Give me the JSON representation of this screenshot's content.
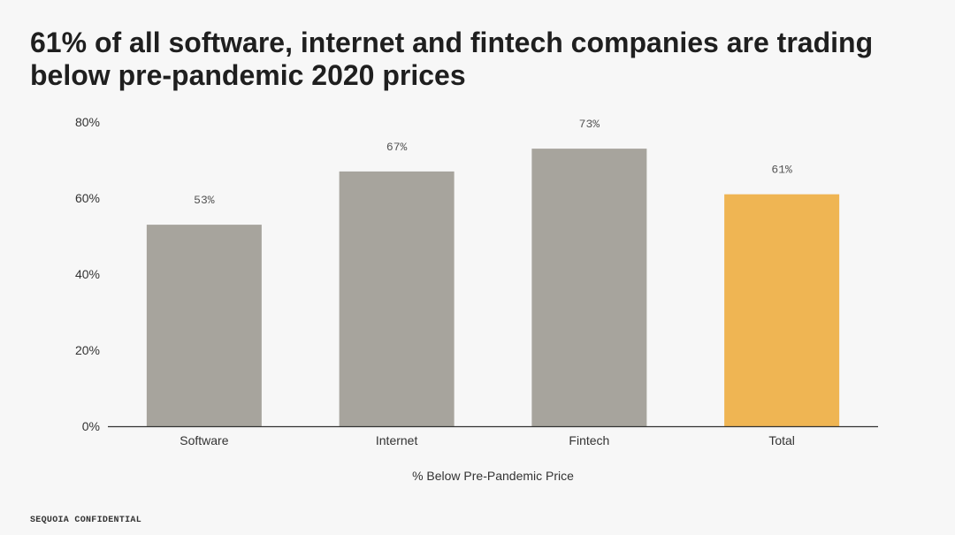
{
  "title_lines": [
    "61% of all software, internet and fintech companies are trading",
    "below pre-pandemic 2020 prices"
  ],
  "footer": "SEQUOIA CONFIDENTIAL",
  "colors": {
    "default_bar": "#a7a49d",
    "highlight_bar": "#efb553",
    "axis_line": "#333333"
  },
  "chart_data": {
    "type": "bar",
    "title": "61% of all software, internet and fintech companies are trading below pre-pandemic 2020 prices",
    "categories": [
      "Software",
      "Internet",
      "Fintech",
      "Total"
    ],
    "values": [
      53,
      67,
      73,
      61
    ],
    "data_labels": [
      "53%",
      "67%",
      "73%",
      "61%"
    ],
    "highlight": [
      false,
      false,
      false,
      true
    ],
    "xlabel": "% Below Pre-Pandemic Price",
    "ylabel": "",
    "ylim": [
      0,
      80
    ],
    "yticks": [
      0,
      20,
      40,
      60,
      80
    ],
    "ytick_labels": [
      "0%",
      "20%",
      "40%",
      "60%",
      "80%"
    ],
    "grid": false,
    "legend": "none"
  }
}
